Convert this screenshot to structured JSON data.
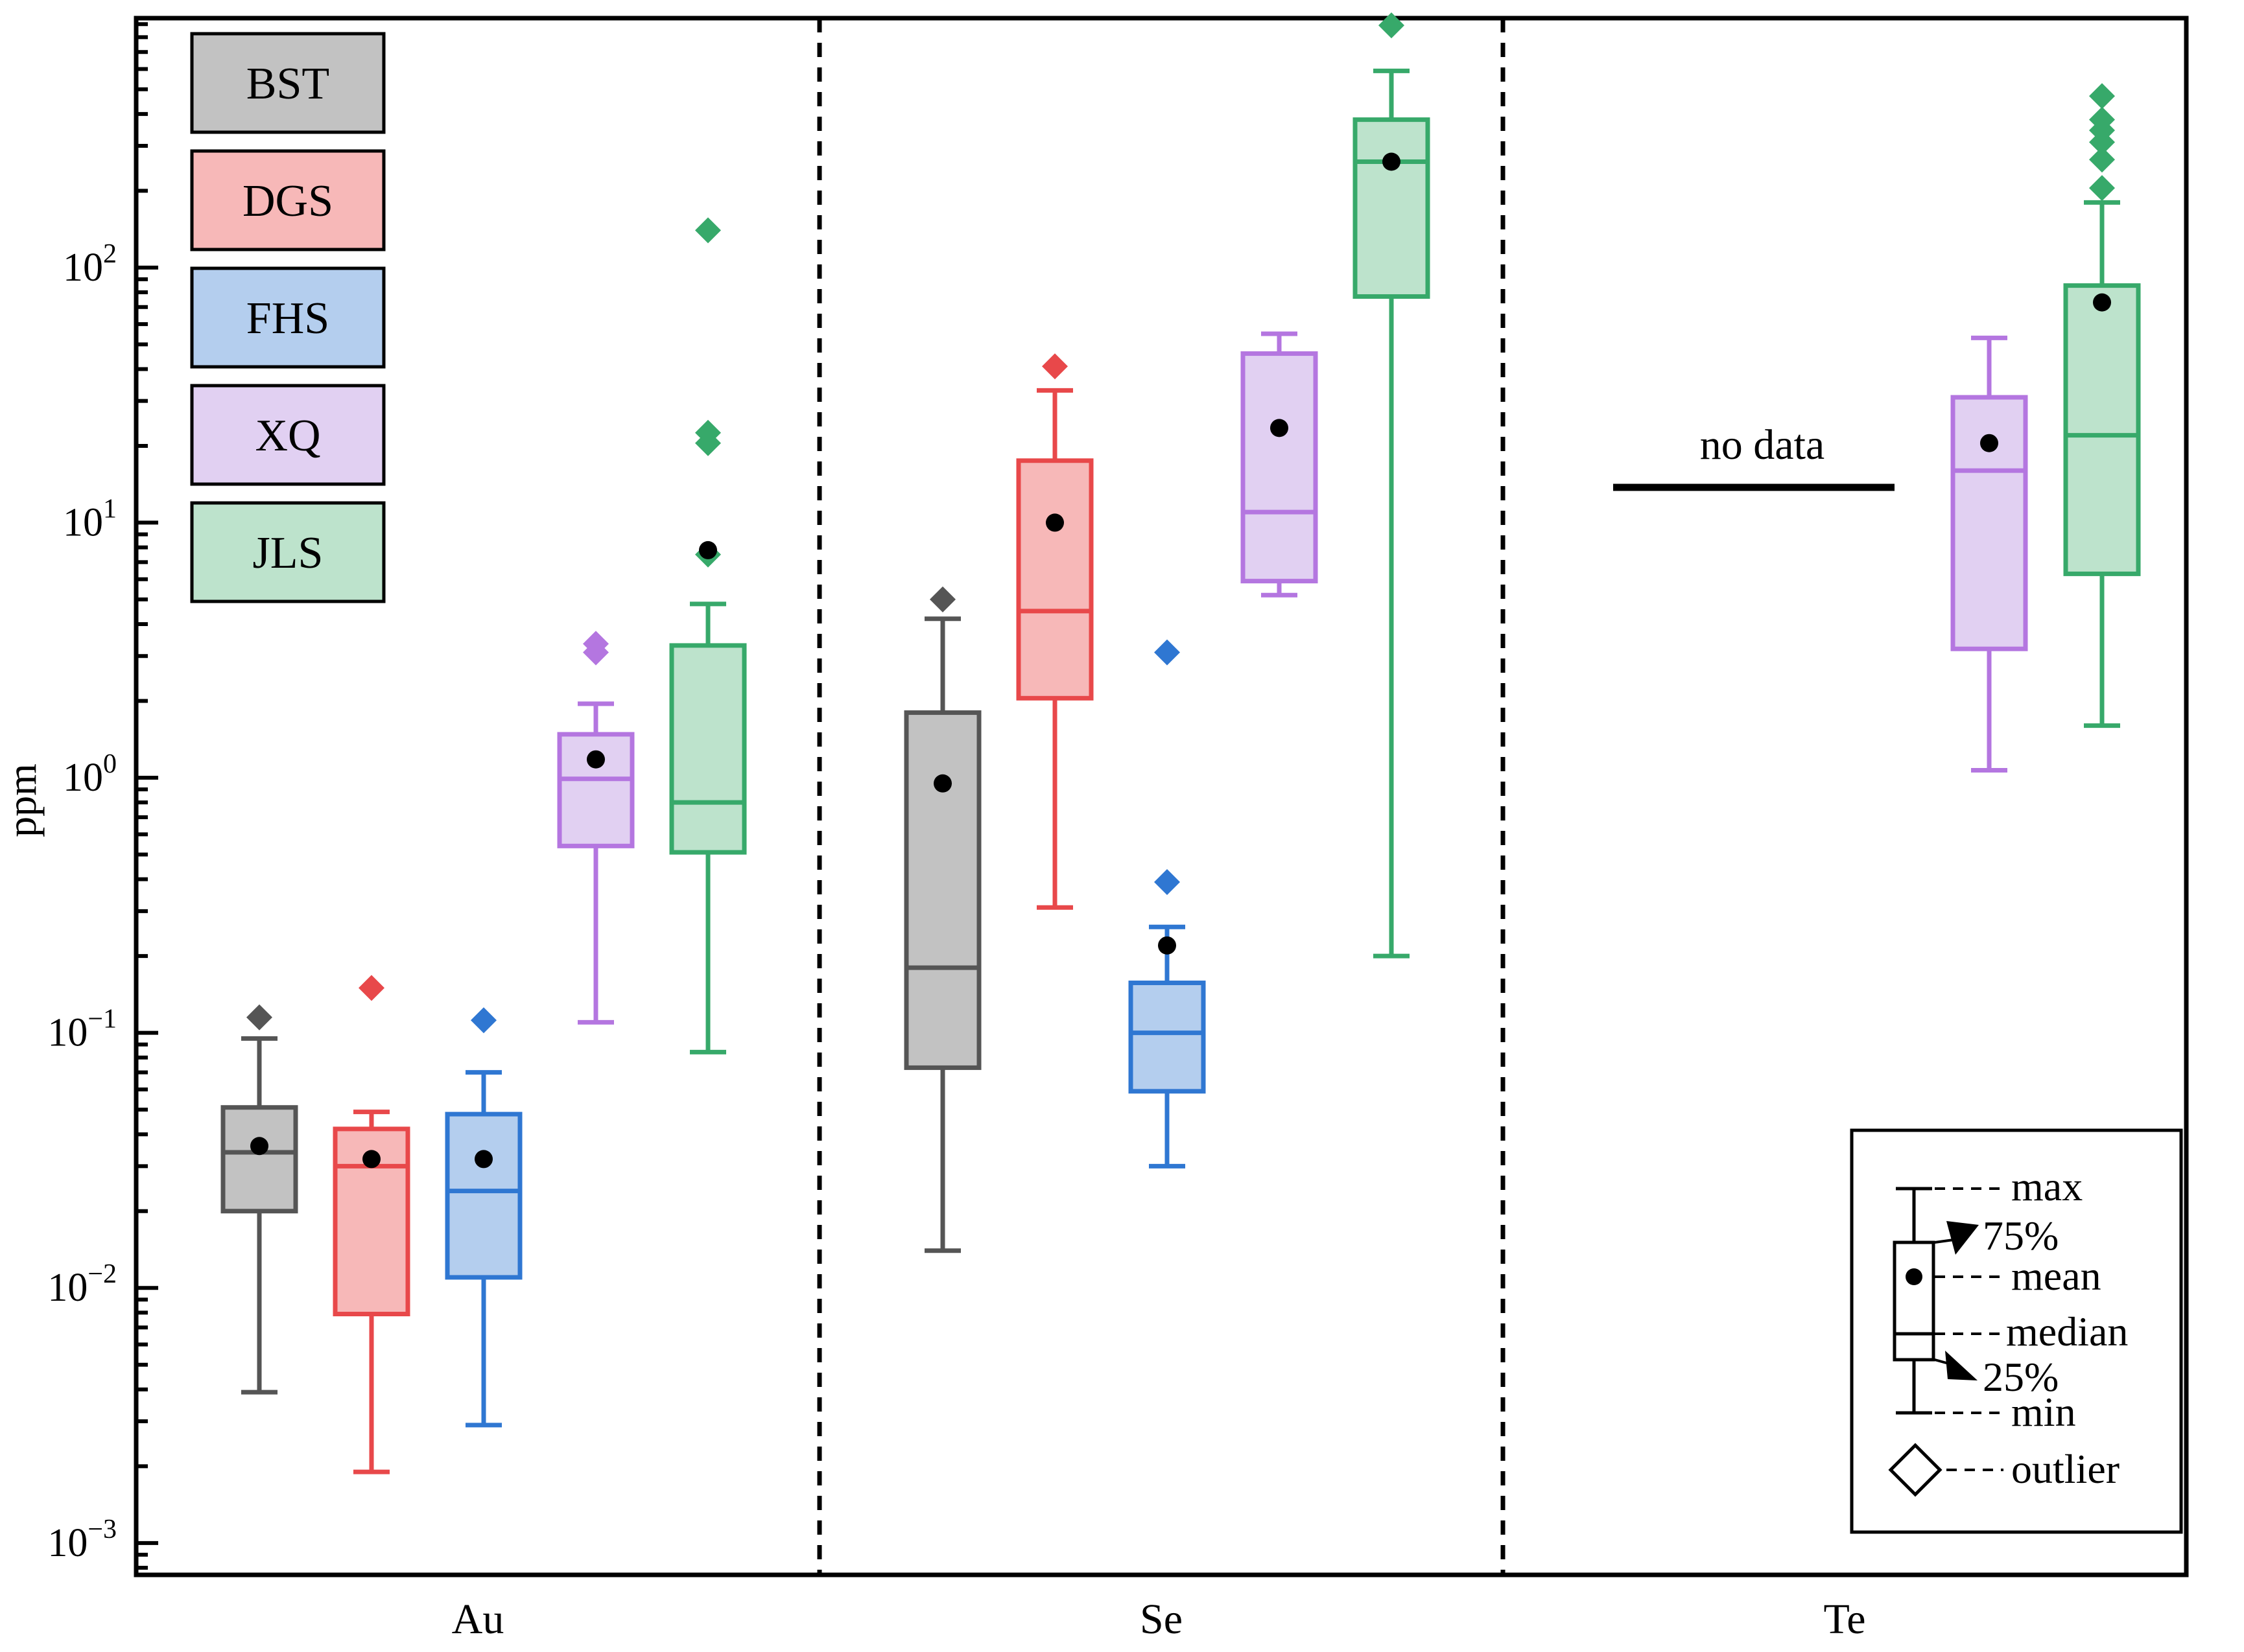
{
  "chart_data": {
    "type": "box",
    "scale": "log",
    "ylabel": "ppm",
    "ylim": [
      0.00075,
      950
    ],
    "yticks": [
      {
        "value": 0.001,
        "base": "10",
        "exp": "−3"
      },
      {
        "value": 0.01,
        "base": "10",
        "exp": "−2"
      },
      {
        "value": 0.1,
        "base": "10",
        "exp": "−1"
      },
      {
        "value": 1,
        "base": "10",
        "exp": "0"
      },
      {
        "value": 10,
        "base": "10",
        "exp": "1"
      },
      {
        "value": 100,
        "base": "10",
        "exp": "2"
      }
    ],
    "groups": [
      "Au",
      "Se",
      "Te"
    ],
    "no_data_label": "no data",
    "series": [
      {
        "name": "BST",
        "color": "#555555",
        "fill": "#c2c2c2",
        "stats": [
          {
            "min": 0.0039,
            "q1": 0.02,
            "median": 0.034,
            "q3": 0.051,
            "max": 0.095,
            "mean": 0.036,
            "outliers": [
              0.115
            ]
          },
          {
            "min": 0.014,
            "q1": 0.073,
            "median": 0.18,
            "q3": 1.8,
            "max": 4.2,
            "mean": 0.95,
            "outliers": [
              5.0
            ]
          },
          null
        ]
      },
      {
        "name": "DGS",
        "color": "#e8484a",
        "fill": "#f7b8b8",
        "stats": [
          {
            "min": 0.0019,
            "q1": 0.0079,
            "median": 0.03,
            "q3": 0.042,
            "max": 0.049,
            "mean": 0.032,
            "outliers": [
              0.15
            ]
          },
          {
            "min": 0.31,
            "q1": 2.05,
            "median": 4.5,
            "q3": 17.5,
            "max": 33,
            "mean": 10,
            "outliers": [
              41
            ]
          },
          null
        ]
      },
      {
        "name": "FHS",
        "color": "#2f77d2",
        "fill": "#b4ceee",
        "stats": [
          {
            "min": 0.0029,
            "q1": 0.011,
            "median": 0.024,
            "q3": 0.048,
            "max": 0.07,
            "mean": 0.032,
            "outliers": [
              0.112
            ]
          },
          {
            "min": 0.03,
            "q1": 0.059,
            "median": 0.1,
            "q3": 0.157,
            "max": 0.26,
            "mean": 0.22,
            "outliers": [
              0.39,
              3.1
            ]
          },
          null
        ]
      },
      {
        "name": "XQ",
        "color": "#b476e0",
        "fill": "#e1d0f2",
        "stats": [
          {
            "min": 0.11,
            "q1": 0.54,
            "median": 0.99,
            "q3": 1.48,
            "max": 1.95,
            "mean": 1.18,
            "outliers": [
              3.1,
              3.35
            ]
          },
          {
            "min": 5.2,
            "q1": 5.9,
            "median": 11,
            "q3": 46,
            "max": 55,
            "mean": 23.5,
            "outliers": []
          },
          {
            "min": 1.07,
            "q1": 3.2,
            "median": 16,
            "q3": 31,
            "max": 53,
            "mean": 20.5,
            "outliers": []
          }
        ]
      },
      {
        "name": "JLS",
        "color": "#37a96a",
        "fill": "#bde3cc",
        "stats": [
          {
            "min": 0.084,
            "q1": 0.51,
            "median": 0.8,
            "q3": 3.3,
            "max": 4.8,
            "mean": 7.8,
            "outliers": [
              7.5,
              20.5,
              22.5,
              140
            ]
          },
          {
            "min": 0.2,
            "q1": 77,
            "median": 260,
            "q3": 380,
            "max": 590,
            "mean": 260,
            "outliers": [
              890
            ]
          },
          {
            "min": 1.6,
            "q1": 6.3,
            "median": 22,
            "q3": 85,
            "max": 180,
            "mean": 73,
            "outliers": [
              205,
              265,
              310,
              345,
              380,
              470
            ]
          }
        ]
      }
    ],
    "key_legend": {
      "max": "max",
      "q3": "75%",
      "mean": "mean",
      "median": "median",
      "q1": "25%",
      "min": "min",
      "outlier": "outlier"
    }
  }
}
